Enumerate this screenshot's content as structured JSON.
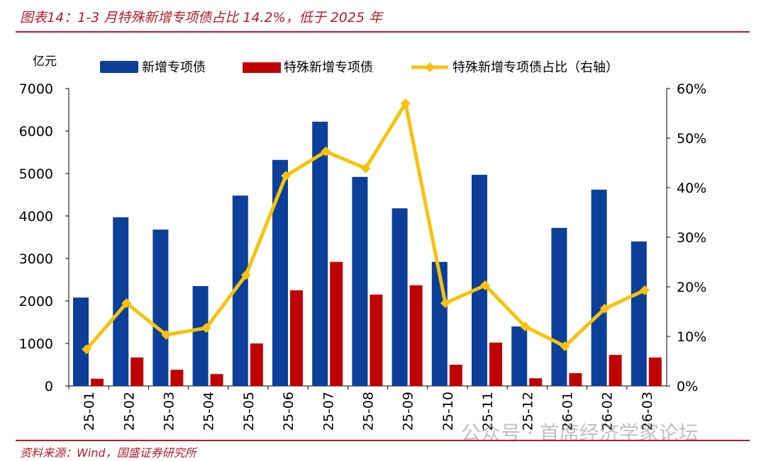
{
  "title": "图表14：1-3 月特殊新增专项债占比 14.2%，低于 2025 年",
  "source": "资料来源：Wind，国盛证券研究所",
  "watermark": "公众号 · 首席经济学家论坛",
  "colors": {
    "blue": "#0b3f9a",
    "red": "#c00000",
    "yellow": "#f7c30a",
    "accent": "#b01c2e"
  },
  "chart_data": {
    "type": "bar+line",
    "ylabel": "亿元",
    "ylim": [
      0,
      7000
    ],
    "yticks": [
      "0",
      "1000",
      "2000",
      "3000",
      "4000",
      "5000",
      "6000",
      "7000"
    ],
    "y2lim": [
      0,
      60
    ],
    "y2ticks": [
      "0%",
      "10%",
      "20%",
      "30%",
      "40%",
      "50%",
      "60%"
    ],
    "categories": [
      "25-01",
      "25-02",
      "25-03",
      "25-04",
      "25-05",
      "25-06",
      "25-07",
      "25-08",
      "25-09",
      "25-10",
      "25-11",
      "25-12",
      "26-01",
      "26-02",
      "26-03"
    ],
    "series": [
      {
        "name": "新增专项债",
        "type": "bar",
        "axis": "left",
        "values": [
          2080,
          3970,
          3680,
          2350,
          4480,
          5320,
          6220,
          4920,
          4180,
          2920,
          4970,
          1400,
          3720,
          4620,
          3400
        ]
      },
      {
        "name": "特殊新增专项债",
        "type": "bar",
        "axis": "left",
        "values": [
          170,
          670,
          380,
          280,
          1000,
          2250,
          2920,
          2150,
          2370,
          500,
          1020,
          180,
          300,
          730,
          670
        ]
      },
      {
        "name": "特殊新增专项债占比（右轴）",
        "type": "line",
        "axis": "right",
        "values": [
          7.4,
          16.7,
          10.3,
          11.7,
          22.4,
          42.4,
          47.3,
          43.9,
          57.0,
          16.7,
          20.3,
          12.0,
          8.0,
          15.6,
          19.3
        ]
      }
    ],
    "legend": "top"
  }
}
